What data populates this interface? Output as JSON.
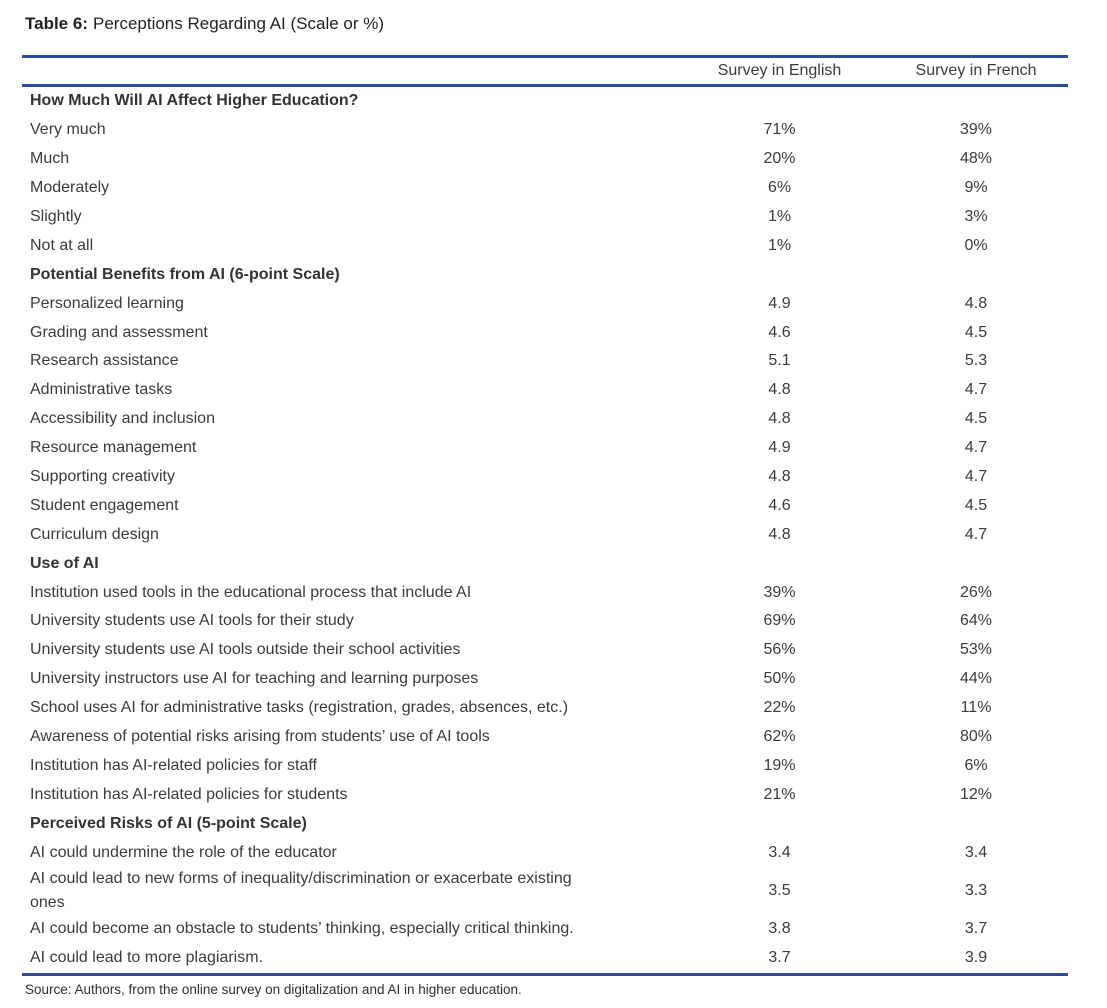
{
  "title": {
    "label": "Table 6:",
    "text": "Perceptions Regarding AI (Scale or %)"
  },
  "colors": {
    "rule_blue": "#2d4b9b",
    "body_text": "#3b3b3b"
  },
  "table": {
    "column_headers": {
      "english": "Survey in English",
      "french": "Survey in French"
    },
    "sections": [
      {
        "header": "How Much Will AI Affect Higher Education?",
        "rows": [
          {
            "label": "Very much",
            "english": "71%",
            "french": "39%"
          },
          {
            "label": "Much",
            "english": "20%",
            "french": "48%"
          },
          {
            "label": "Moderately",
            "english": "6%",
            "french": "9%"
          },
          {
            "label": "Slightly",
            "english": "1%",
            "french": "3%"
          },
          {
            "label": "Not at all",
            "english": "1%",
            "french": "0%"
          }
        ]
      },
      {
        "header": "Potential Benefits from AI (6-point Scale)",
        "rows": [
          {
            "label": "Personalized learning",
            "english": "4.9",
            "french": "4.8"
          },
          {
            "label": "Grading and assessment",
            "english": "4.6",
            "french": "4.5"
          },
          {
            "label": "Research assistance",
            "english": "5.1",
            "french": "5.3"
          },
          {
            "label": "Administrative tasks",
            "english": "4.8",
            "french": "4.7"
          },
          {
            "label": "Accessibility and inclusion",
            "english": "4.8",
            "french": "4.5"
          },
          {
            "label": "Resource management",
            "english": "4.9",
            "french": "4.7"
          },
          {
            "label": "Supporting creativity",
            "english": "4.8",
            "french": "4.7"
          },
          {
            "label": "Student engagement",
            "english": "4.6",
            "french": "4.5"
          },
          {
            "label": "Curriculum design",
            "english": "4.8",
            "french": "4.7"
          }
        ]
      },
      {
        "header": "Use of AI",
        "rows": [
          {
            "label": "Institution used tools in the educational process that include AI",
            "english": "39%",
            "french": "26%"
          },
          {
            "label": "University students use AI tools for their study",
            "english": "69%",
            "french": "64%"
          },
          {
            "label": "University students use AI tools outside their school activities",
            "english": "56%",
            "french": "53%"
          },
          {
            "label": "University instructors use AI for teaching and learning purposes",
            "english": "50%",
            "french": "44%"
          },
          {
            "label": "School uses AI for administrative tasks (registration, grades, absences, etc.)",
            "english": "22%",
            "french": "11%"
          },
          {
            "label": "Awareness of potential risks arising from students’ use of AI tools",
            "english": "62%",
            "french": "80%"
          },
          {
            "label": "Institution has AI-related policies for staff",
            "english": "19%",
            "french": "6%"
          },
          {
            "label": "Institution has AI-related policies for students",
            "english": "21%",
            "french": "12%"
          }
        ]
      },
      {
        "header": "Perceived Risks of AI (5-point Scale)",
        "rows": [
          {
            "label": "AI could undermine the role of the educator",
            "english": "3.4",
            "french": "3.4"
          },
          {
            "label": "AI could lead to new forms of inequality/discrimination or exacerbate existing ones",
            "english": "3.5",
            "french": "3.3"
          },
          {
            "label": "AI could become an obstacle to students’ thinking, especially critical thinking.",
            "english": "3.8",
            "french": "3.7"
          },
          {
            "label": "AI could lead to more plagiarism.",
            "english": "3.7",
            "french": "3.9"
          }
        ]
      }
    ]
  },
  "source": "Source: Authors, from the online survey on digitalization and AI in higher education."
}
